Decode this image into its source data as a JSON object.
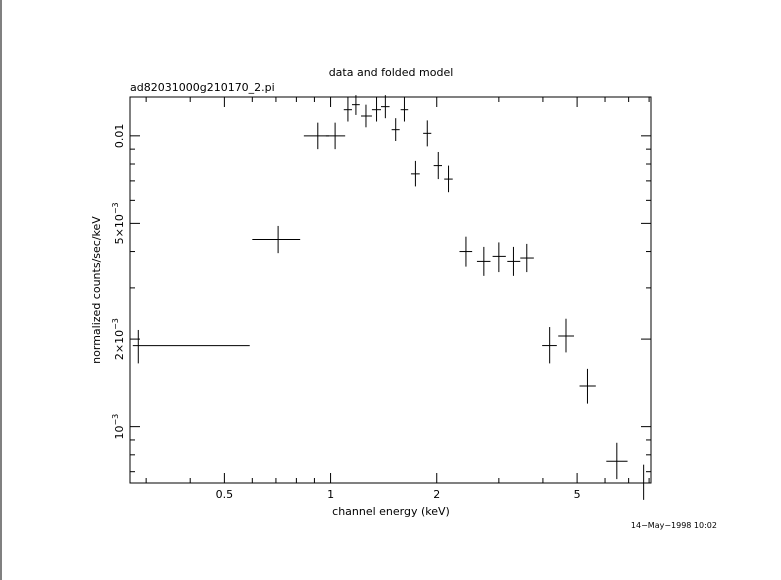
{
  "chart_data": {
    "type": "scatter",
    "title": "data and folded model",
    "subtitle": "ad82031000g210170_2.pi",
    "xlabel": "channel energy (keV)",
    "ylabel": "normalized counts/sec/keV",
    "x_scale": "log",
    "y_scale": "log",
    "xlim": [
      0.27,
      8.1
    ],
    "ylim": [
      0.00064,
      0.0136
    ],
    "x_ticks": [
      {
        "value": 0.5,
        "label": "0.5"
      },
      {
        "value": 1,
        "label": "1"
      },
      {
        "value": 2,
        "label": "2"
      },
      {
        "value": 5,
        "label": "5"
      }
    ],
    "y_ticks": [
      {
        "value": 0.001,
        "base": "10",
        "exp": "−3",
        "mult": ""
      },
      {
        "value": 0.002,
        "base": "10",
        "exp": "−3",
        "mult": "2×"
      },
      {
        "value": 0.005,
        "base": "10",
        "exp": "−3",
        "mult": "5×"
      },
      {
        "value": 0.01,
        "base": "0.01",
        "exp": "",
        "mult": ""
      }
    ],
    "series": [
      {
        "points": [
          {
            "x": 0.285,
            "xlo": 0.275,
            "xhi": 0.59,
            "y": 0.0019,
            "ylo": 0.00165,
            "yhi": 0.00215
          },
          {
            "x": 0.71,
            "xlo": 0.6,
            "xhi": 0.82,
            "y": 0.0044,
            "ylo": 0.00395,
            "yhi": 0.0049
          },
          {
            "x": 0.92,
            "xlo": 0.84,
            "xhi": 0.99,
            "y": 0.01,
            "ylo": 0.009,
            "yhi": 0.0111
          },
          {
            "x": 1.03,
            "xlo": 0.97,
            "xhi": 1.1,
            "y": 0.01,
            "ylo": 0.009,
            "yhi": 0.0111
          },
          {
            "x": 1.12,
            "xlo": 1.09,
            "xhi": 1.15,
            "y": 0.0123,
            "ylo": 0.0112,
            "yhi": 0.0136
          },
          {
            "x": 1.18,
            "xlo": 1.15,
            "xhi": 1.21,
            "y": 0.0128,
            "ylo": 0.0118,
            "yhi": 0.0138
          },
          {
            "x": 1.26,
            "xlo": 1.22,
            "xhi": 1.31,
            "y": 0.0117,
            "ylo": 0.0107,
            "yhi": 0.0128
          },
          {
            "x": 1.35,
            "xlo": 1.31,
            "xhi": 1.39,
            "y": 0.0123,
            "ylo": 0.0112,
            "yhi": 0.0136
          },
          {
            "x": 1.43,
            "xlo": 1.39,
            "xhi": 1.47,
            "y": 0.0126,
            "ylo": 0.0115,
            "yhi": 0.0138
          },
          {
            "x": 1.53,
            "xlo": 1.49,
            "xhi": 1.57,
            "y": 0.0105,
            "ylo": 0.0096,
            "yhi": 0.0115
          },
          {
            "x": 1.62,
            "xlo": 1.58,
            "xhi": 1.66,
            "y": 0.0123,
            "ylo": 0.0112,
            "yhi": 0.0136
          },
          {
            "x": 1.74,
            "xlo": 1.69,
            "xhi": 1.79,
            "y": 0.0074,
            "ylo": 0.0067,
            "yhi": 0.0082
          },
          {
            "x": 1.88,
            "xlo": 1.83,
            "xhi": 1.93,
            "y": 0.0102,
            "ylo": 0.0092,
            "yhi": 0.0113
          },
          {
            "x": 2.02,
            "xlo": 1.96,
            "xhi": 2.07,
            "y": 0.0079,
            "ylo": 0.0071,
            "yhi": 0.0088
          },
          {
            "x": 2.16,
            "xlo": 2.1,
            "xhi": 2.22,
            "y": 0.0071,
            "ylo": 0.0064,
            "yhi": 0.0079
          },
          {
            "x": 2.42,
            "xlo": 2.32,
            "xhi": 2.52,
            "y": 0.004,
            "ylo": 0.00355,
            "yhi": 0.0045
          },
          {
            "x": 2.72,
            "xlo": 2.6,
            "xhi": 2.84,
            "y": 0.0037,
            "ylo": 0.0033,
            "yhi": 0.00415
          },
          {
            "x": 3.0,
            "xlo": 2.88,
            "xhi": 3.14,
            "y": 0.00385,
            "ylo": 0.0034,
            "yhi": 0.0043
          },
          {
            "x": 3.3,
            "xlo": 3.17,
            "xhi": 3.45,
            "y": 0.0037,
            "ylo": 0.0033,
            "yhi": 0.00415
          },
          {
            "x": 3.6,
            "xlo": 3.45,
            "xhi": 3.77,
            "y": 0.0038,
            "ylo": 0.0034,
            "yhi": 0.00425
          },
          {
            "x": 4.18,
            "xlo": 3.98,
            "xhi": 4.38,
            "y": 0.0019,
            "ylo": 0.00165,
            "yhi": 0.0022
          },
          {
            "x": 4.65,
            "xlo": 4.42,
            "xhi": 4.9,
            "y": 0.00205,
            "ylo": 0.0018,
            "yhi": 0.00235
          },
          {
            "x": 5.35,
            "xlo": 5.08,
            "xhi": 5.65,
            "y": 0.00138,
            "ylo": 0.0012,
            "yhi": 0.00158
          },
          {
            "x": 6.48,
            "xlo": 6.05,
            "xhi": 6.95,
            "y": 0.00076,
            "ylo": 0.00066,
            "yhi": 0.00088
          },
          {
            "x": 7.72,
            "xlo": 7.25,
            "xhi": 8.1,
            "y": 0.00064,
            "ylo": 0.00056,
            "yhi": 0.00074
          }
        ]
      }
    ]
  },
  "timestamp": "14−May−1998 10:02"
}
